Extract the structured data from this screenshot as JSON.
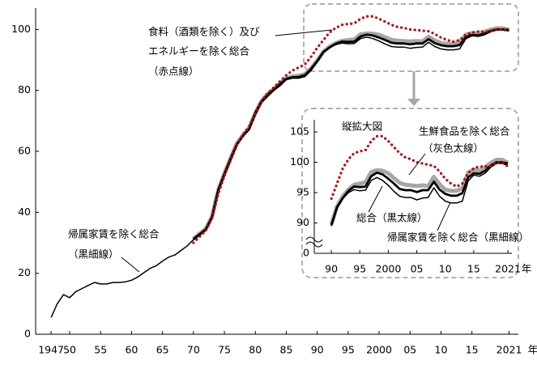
{
  "chart_data": {
    "type": "line",
    "xlim": [
      1944.5,
      2022.5
    ],
    "ylim": [
      0,
      107
    ],
    "yticks": [
      0,
      20,
      40,
      60,
      80,
      100
    ],
    "xticks": [
      1947,
      {
        "value": 1950,
        "label": "50"
      },
      {
        "value": 1955,
        "label": "55"
      },
      {
        "value": 1960,
        "label": "60"
      },
      {
        "value": 1965,
        "label": "65"
      },
      {
        "value": 1970,
        "label": "70"
      },
      {
        "value": 1975,
        "label": "75"
      },
      {
        "value": 1980,
        "label": "80"
      },
      {
        "value": 1985,
        "label": "85"
      },
      {
        "value": 1990,
        "label": "90"
      },
      {
        "value": 1995,
        "label": "95"
      },
      2000,
      {
        "value": 2005,
        "label": "05"
      },
      {
        "value": 2010,
        "label": "10"
      },
      {
        "value": 2015,
        "label": "15"
      },
      2021
    ],
    "x_unit": "年",
    "series": [
      {
        "color": "#a6a6a6",
        "width": 5,
        "x": [
          1970,
          1971,
          1972,
          1973,
          1974,
          1975,
          1976,
          1977,
          1978,
          1979,
          1980,
          1981,
          1982,
          1983,
          1984,
          1985,
          1986,
          1987,
          1988,
          1989,
          1990,
          1991,
          1992,
          1993,
          1994,
          1995,
          1996,
          1997,
          1998,
          1999,
          2000,
          2001,
          2002,
          2003,
          2004,
          2005,
          2006,
          2007,
          2008,
          2009,
          2010,
          2011,
          2012,
          2013,
          2014,
          2015,
          2016,
          2017,
          2018,
          2019,
          2020,
          2021
        ],
        "values": [
          31.3,
          33.0,
          34.6,
          38.7,
          47.2,
          52.8,
          57.8,
          62.5,
          65.4,
          67.8,
          72.6,
          76.5,
          78.9,
          80.5,
          82.3,
          84.0,
          84.6,
          84.8,
          85.3,
          87.2,
          89.8,
          92.7,
          94.4,
          95.5,
          96.3,
          96.5,
          96.7,
          98.4,
          98.7,
          98.6,
          98.2,
          97.4,
          96.6,
          96.3,
          96.2,
          96.1,
          96.2,
          96.1,
          97.6,
          96.4,
          95.5,
          95.3,
          95.3,
          95.7,
          98.3,
          98.8,
          98.6,
          99.2,
          99.9,
          100.4,
          100.4,
          99.9
        ]
      },
      {
        "color": "#000000",
        "width": 2.8,
        "x": [
          1970,
          1971,
          1972,
          1973,
          1974,
          1975,
          1976,
          1977,
          1978,
          1979,
          1980,
          1981,
          1982,
          1983,
          1984,
          1985,
          1986,
          1987,
          1988,
          1989,
          1990,
          1991,
          1992,
          1993,
          1994,
          1995,
          1996,
          1997,
          1998,
          1999,
          2000,
          2001,
          2002,
          2003,
          2004,
          2005,
          2006,
          2007,
          2008,
          2009,
          2010,
          2011,
          2012,
          2013,
          2014,
          2015,
          2016,
          2017,
          2018,
          2019,
          2020,
          2021
        ],
        "values": [
          31.2,
          32.8,
          34.4,
          38.5,
          47.3,
          52.6,
          57.6,
          62.3,
          65.1,
          67.4,
          72.7,
          76.4,
          78.6,
          80.2,
          82.1,
          83.8,
          84.3,
          84.4,
          85.0,
          87.0,
          89.6,
          92.6,
          94.1,
          95.3,
          96,
          95.9,
          96,
          97.7,
          98.3,
          98,
          97.3,
          96.5,
          95.6,
          95.4,
          95.4,
          95.1,
          95.4,
          95.4,
          96.8,
          95.5,
          94.8,
          94.5,
          94.5,
          94.9,
          97.5,
          98.2,
          98.1,
          98.6,
          99.5,
          100,
          100,
          99.8
        ]
      },
      {
        "color": "#000000",
        "width": 1.5,
        "x": [
          1947,
          1948,
          1949,
          1950,
          1951,
          1952,
          1953,
          1954,
          1955,
          1956,
          1957,
          1958,
          1959,
          1960,
          1961,
          1962,
          1963,
          1964,
          1965,
          1966,
          1967,
          1968,
          1969,
          1970,
          1971,
          1972,
          1973,
          1974,
          1975,
          1976,
          1977,
          1978,
          1979,
          1980,
          1981,
          1982,
          1983,
          1984,
          1985,
          1986,
          1987,
          1988,
          1989,
          1990,
          1991,
          1992,
          1993,
          1994,
          1995,
          1996,
          1997,
          1998,
          1999,
          2000,
          2001,
          2002,
          2003,
          2004,
          2005,
          2006,
          2007,
          2008,
          2009,
          2010,
          2011,
          2012,
          2013,
          2014,
          2015,
          2016,
          2017,
          2018,
          2019,
          2020,
          2021
        ],
        "values": [
          5.5,
          10,
          13,
          12,
          14,
          15,
          16,
          17,
          16.5,
          16.5,
          17,
          17,
          17.2,
          17.7,
          18.8,
          20.2,
          21.6,
          22.5,
          24,
          25.3,
          26,
          27.5,
          29,
          31,
          32.5,
          34,
          38,
          47,
          52,
          57,
          62,
          65,
          67,
          72,
          76,
          78,
          80,
          81.5,
          83.5,
          84,
          84,
          84.5,
          86.5,
          89.5,
          92.5,
          94,
          95,
          95.5,
          95.3,
          95.4,
          97,
          97.5,
          97,
          96.2,
          95.2,
          94.4,
          94.2,
          94.2,
          93.8,
          94.1,
          94.2,
          95.8,
          94.4,
          93.6,
          93.3,
          93.3,
          93.6,
          96.9,
          97.9,
          97.7,
          98.2,
          99.2,
          99.8,
          99.8,
          99.5
        ]
      },
      {
        "color": "#c00000",
        "width": 3.2,
        "dotted": true,
        "x": [
          1970,
          1971,
          1972,
          1973,
          1974,
          1975,
          1976,
          1977,
          1978,
          1979,
          1980,
          1981,
          1982,
          1983,
          1984,
          1985,
          1986,
          1987,
          1988,
          1989,
          1990,
          1991,
          1992,
          1993,
          1994,
          1995,
          1996,
          1997,
          1998,
          1999,
          2000,
          2001,
          2002,
          2003,
          2004,
          2005,
          2006,
          2007,
          2008,
          2009,
          2010,
          2011,
          2012,
          2013,
          2014,
          2015,
          2016,
          2017,
          2018,
          2019,
          2020,
          2021
        ],
        "values": [
          30,
          32,
          34,
          38,
          46,
          52,
          57,
          62,
          65.5,
          68,
          72.5,
          76.5,
          79,
          81,
          83,
          85,
          86.5,
          87.5,
          88.5,
          91,
          94,
          96.5,
          99,
          100.5,
          101.5,
          101.8,
          102,
          103.5,
          104.3,
          104.3,
          103.5,
          102.5,
          101.5,
          100.8,
          100.5,
          100,
          99.8,
          99.6,
          99.4,
          98.5,
          97.3,
          96.5,
          96,
          96.5,
          98.2,
          99,
          99.3,
          99.3,
          99.4,
          99.9,
          100,
          99.3
        ]
      }
    ],
    "annotations": [
      "食料（酒類を除く）及び",
      "エネルギーを除く総合",
      "（赤点線）",
      "帰属家賃を除く総合",
      "（黒細線）"
    ],
    "inset": {
      "title": "縦拡大図",
      "xlim": [
        1987,
        2021.7
      ],
      "ylim": [
        85,
        107
      ],
      "yticks": [
        90,
        95,
        100,
        105
      ],
      "xticks": [
        {
          "value": 1990,
          "label": "90"
        },
        {
          "value": 1995,
          "label": "95"
        },
        2000,
        {
          "value": 2005,
          "label": "05"
        },
        {
          "value": 2010,
          "label": "10"
        },
        {
          "value": 2015,
          "label": "15"
        },
        2021
      ],
      "x_unit": "年",
      "axis_break_label": "0",
      "annotations": [
        "生鮮食品を除く総合",
        "（灰色太線）",
        "総合（黒太線）",
        "帰属家賃を除く総合（黒細線）"
      ]
    }
  }
}
